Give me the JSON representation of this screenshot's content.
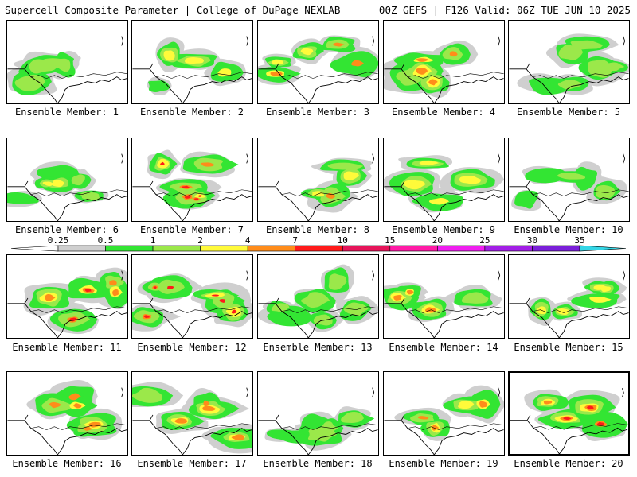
{
  "header": {
    "left_title": "Supercell Composite Parameter | College of DuPage NEXLAB",
    "right_title": "00Z GEFS | F126 Valid: 06Z TUE JUN 10 2025"
  },
  "members": [
    {
      "label": "Ensemble Member: 1"
    },
    {
      "label": "Ensemble Member: 2"
    },
    {
      "label": "Ensemble Member: 3"
    },
    {
      "label": "Ensemble Member: 4"
    },
    {
      "label": "Ensemble Member: 5"
    },
    {
      "label": "Ensemble Member: 6"
    },
    {
      "label": "Ensemble Member: 7"
    },
    {
      "label": "Ensemble Member: 8"
    },
    {
      "label": "Ensemble Member: 9"
    },
    {
      "label": "Ensemble Member: 10"
    },
    {
      "label": "Ensemble Member: 11"
    },
    {
      "label": "Ensemble Member: 12"
    },
    {
      "label": "Ensemble Member: 13"
    },
    {
      "label": "Ensemble Member: 14"
    },
    {
      "label": "Ensemble Member: 15"
    },
    {
      "label": "Ensemble Member: 16"
    },
    {
      "label": "Ensemble Member: 17"
    },
    {
      "label": "Ensemble Member: 18"
    },
    {
      "label": "Ensemble Member: 19"
    },
    {
      "label": "Ensemble Member: 20",
      "selected": true
    }
  ],
  "colorbar": {
    "thresholds": [
      "0.25",
      "0.5",
      "1",
      "2",
      "4",
      "7",
      "10",
      "15",
      "20",
      "25",
      "30",
      "35"
    ],
    "colors": [
      "#cfcfcf",
      "#33e533",
      "#9be84a",
      "#fffa3a",
      "#ff8c1a",
      "#ff1a1a",
      "#e6145a",
      "#ff1aa6",
      "#f01ef0",
      "#a21ee6",
      "#7a1fd9",
      "#a77be6",
      "#33d6e6"
    ]
  }
}
